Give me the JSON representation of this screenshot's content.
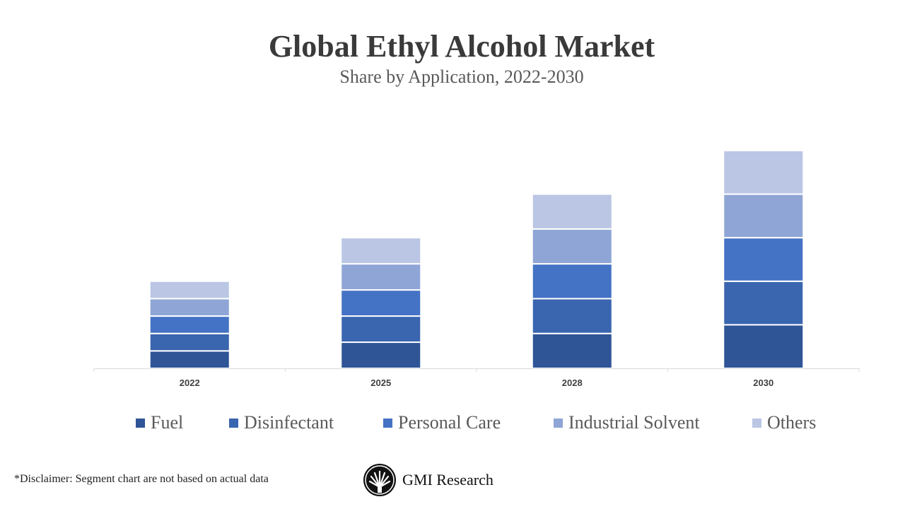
{
  "chart_data": {
    "type": "bar",
    "stacked": true,
    "title": "Global Ethyl Alcohol Market",
    "subtitle": "Share by Application, 2022-2030",
    "categories": [
      "2022",
      "2025",
      "2028",
      "2030"
    ],
    "series": [
      {
        "name": "Fuel",
        "color": "#2F5597",
        "values": [
          2,
          3,
          4,
          5
        ]
      },
      {
        "name": "Disinfectant",
        "color": "#3A65AF",
        "values": [
          2,
          3,
          4,
          5
        ]
      },
      {
        "name": "Personal Care",
        "color": "#4472C4",
        "values": [
          2,
          3,
          4,
          5
        ]
      },
      {
        "name": "Industrial Solvent",
        "color": "#8FA5D6",
        "values": [
          2,
          3,
          4,
          5
        ]
      },
      {
        "name": "Others",
        "color": "#BAC6E4",
        "values": [
          2,
          3,
          4,
          5
        ]
      }
    ],
    "xlabel": "",
    "ylabel": "",
    "ylim": [
      0,
      25
    ],
    "grid": false,
    "y_axis_visible": false,
    "legend_position": "bottom"
  },
  "footer": {
    "disclaimer": "*Disclaimer:   Segment chart are not based on actual data",
    "brand": "GMI Research",
    "logo_icon": "gmi-fan-logo-icon"
  }
}
